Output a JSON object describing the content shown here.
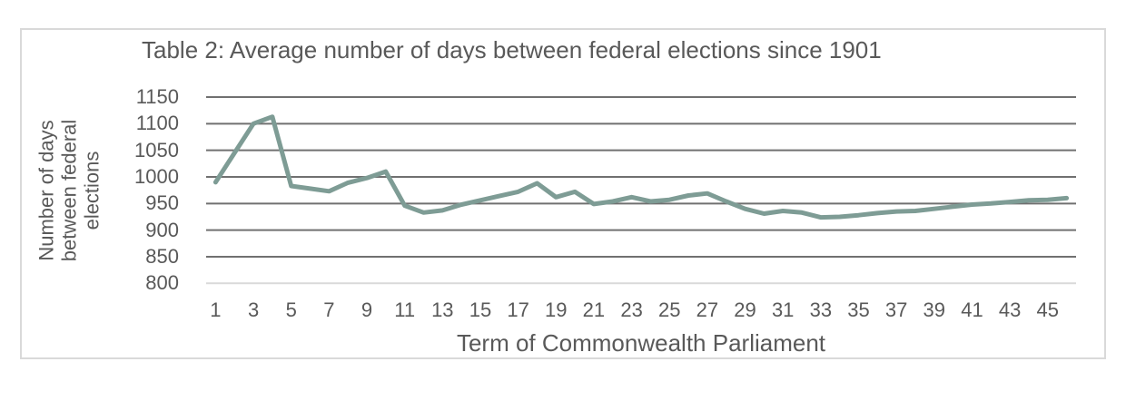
{
  "chart_data": {
    "type": "line",
    "title": "Table 2: Average number of days between federal elections since 1901",
    "xlabel": "Term of Commonwealth Parliament",
    "ylabel": "Number of days between federal elections",
    "ylabel_lines": [
      "Number of days",
      "between federal",
      "elections"
    ],
    "x": [
      1,
      2,
      3,
      4,
      5,
      6,
      7,
      8,
      9,
      10,
      11,
      12,
      13,
      14,
      15,
      16,
      17,
      18,
      19,
      20,
      21,
      22,
      23,
      24,
      25,
      26,
      27,
      28,
      29,
      30,
      31,
      32,
      33,
      34,
      35,
      36,
      37,
      38,
      39,
      40,
      41,
      42,
      43,
      44,
      45,
      46
    ],
    "values": [
      990,
      1045,
      1100,
      1113,
      983,
      978,
      973,
      989,
      998,
      1010,
      946,
      933,
      937,
      948,
      956,
      964,
      972,
      988,
      962,
      972,
      949,
      954,
      962,
      954,
      957,
      965,
      969,
      954,
      940,
      931,
      936,
      933,
      924,
      925,
      928,
      932,
      935,
      936,
      940,
      944,
      948,
      950,
      953,
      956,
      957,
      960
    ],
    "yticks": [
      1150,
      1100,
      1050,
      1000,
      950,
      900,
      850,
      800
    ],
    "xticks": [
      1,
      3,
      5,
      7,
      9,
      11,
      13,
      15,
      17,
      19,
      21,
      23,
      25,
      27,
      29,
      31,
      33,
      35,
      37,
      39,
      41,
      43,
      45
    ],
    "ylim": [
      800,
      1150
    ],
    "grid": true,
    "legend": false,
    "colors": {
      "line": "#7e9c95",
      "gridline": "#707070",
      "baseline": "#d9d9d9",
      "text": "#595959",
      "frame_border": "#d9d9d9"
    }
  }
}
